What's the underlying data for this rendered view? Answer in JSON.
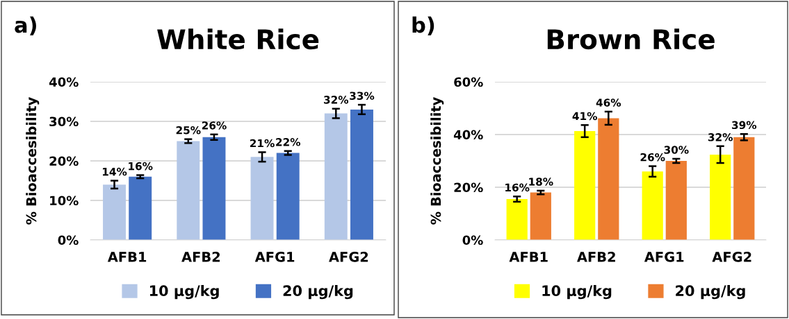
{
  "chart_data": [
    {
      "type": "bar",
      "title": "White Rice",
      "ylabel": "% Bioaccesibility",
      "annotations": [
        "a)"
      ],
      "categories": [
        "AFB1",
        "AFB2",
        "AFG1",
        "AFG2"
      ],
      "series": [
        {
          "name": "10 µg/kg",
          "color": "#b4c7e7",
          "values": [
            14,
            25,
            21,
            32
          ],
          "errors": [
            1,
            0.5,
            1.2,
            1.2
          ],
          "value_labels": [
            "14%",
            "25%",
            "21%",
            "32%"
          ]
        },
        {
          "name": "20 µg/kg",
          "color": "#4472c4",
          "values": [
            16,
            26,
            22,
            33
          ],
          "errors": [
            0.4,
            0.7,
            0.5,
            1.2
          ],
          "value_labels": [
            "16%",
            "26%",
            "22%",
            "33%"
          ]
        }
      ],
      "ylim": [
        0,
        40
      ],
      "yticks": [
        {
          "value": 0,
          "label": "0%"
        },
        {
          "value": 10,
          "label": "10%"
        },
        {
          "value": 20,
          "label": "20%"
        },
        {
          "value": 30,
          "label": "30%"
        },
        {
          "value": 40,
          "label": "40%"
        }
      ],
      "grid": "y",
      "legend": "bottom"
    },
    {
      "type": "bar",
      "title": "Brown Rice",
      "ylabel": "% Bioaccesibility",
      "annotations": [
        "b)"
      ],
      "categories": [
        "AFB1",
        "AFB2",
        "AFG1",
        "AFG2"
      ],
      "series": [
        {
          "name": "10 µg/kg",
          "color": "#ffff00",
          "values": [
            15.5,
            41.3,
            26,
            32.4
          ],
          "errors": [
            1,
            2.3,
            2,
            3.2
          ],
          "value_labels": [
            "16%",
            "41%",
            "26%",
            "32%"
          ]
        },
        {
          "name": "20 µg/kg",
          "color": "#ed7d31",
          "values": [
            18,
            46.2,
            30,
            39
          ],
          "errors": [
            0.7,
            2.5,
            0.8,
            1.2
          ],
          "value_labels": [
            "18%",
            "46%",
            "30%",
            "39%"
          ]
        }
      ],
      "ylim": [
        0,
        60
      ],
      "yticks": [
        {
          "value": 0,
          "label": "0%"
        },
        {
          "value": 20,
          "label": "20%"
        },
        {
          "value": 40,
          "label": "40%"
        },
        {
          "value": 60,
          "label": "60%"
        }
      ],
      "grid": "y",
      "legend": "bottom"
    }
  ]
}
